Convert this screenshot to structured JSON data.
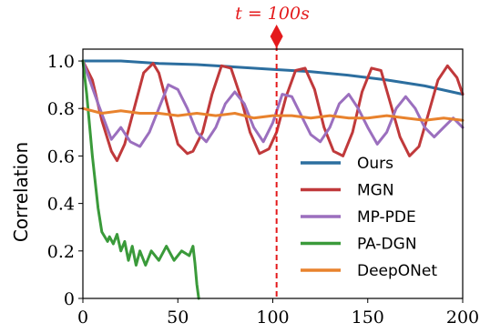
{
  "chart_data": {
    "type": "line",
    "title": "",
    "xlabel": "",
    "ylabel": "Correlation",
    "xlim": [
      0,
      200
    ],
    "ylim": [
      0,
      1.05
    ],
    "xticks": [
      0,
      50,
      100,
      150,
      200
    ],
    "xtick_labels": [
      "0",
      "50",
      "100",
      "150",
      "200"
    ],
    "yticks": [
      0,
      0.2,
      0.4,
      0.6,
      0.8,
      1.0
    ],
    "ytick_labels": [
      "0",
      "0.2",
      "0.4",
      "0.6",
      "0.8",
      "1.0"
    ],
    "grid": false,
    "legend_position": "lower-right",
    "annotation": {
      "label": "t = 100s",
      "x": 102,
      "style": "dashed vertical line with diamond marker"
    },
    "series": [
      {
        "name": "Ours",
        "color": "#2c6e9f",
        "x": [
          0,
          20,
          40,
          60,
          80,
          100,
          120,
          140,
          160,
          180,
          200
        ],
        "y": [
          1.0,
          1.0,
          0.99,
          0.985,
          0.975,
          0.965,
          0.955,
          0.94,
          0.92,
          0.895,
          0.86
        ]
      },
      {
        "name": "MGN",
        "color": "#c0393b",
        "x": [
          0,
          5,
          10,
          15,
          18,
          22,
          27,
          32,
          37,
          40,
          45,
          50,
          55,
          58,
          63,
          68,
          73,
          78,
          83,
          88,
          93,
          98,
          102,
          107,
          112,
          117,
          122,
          127,
          132,
          137,
          142,
          147,
          152,
          157,
          162,
          167,
          172,
          177,
          182,
          187,
          192,
          197,
          200
        ],
        "y": [
          1.0,
          0.92,
          0.75,
          0.62,
          0.58,
          0.65,
          0.8,
          0.95,
          0.99,
          0.95,
          0.8,
          0.65,
          0.61,
          0.62,
          0.7,
          0.86,
          0.98,
          0.97,
          0.85,
          0.7,
          0.61,
          0.63,
          0.7,
          0.85,
          0.96,
          0.97,
          0.88,
          0.72,
          0.62,
          0.6,
          0.7,
          0.87,
          0.97,
          0.96,
          0.82,
          0.68,
          0.6,
          0.64,
          0.78,
          0.92,
          0.98,
          0.93,
          0.86
        ]
      },
      {
        "name": "MP-PDE",
        "color": "#9b6fbe",
        "x": [
          0,
          8,
          15,
          20,
          25,
          30,
          35,
          40,
          45,
          50,
          55,
          60,
          65,
          70,
          75,
          80,
          85,
          90,
          95,
          100,
          105,
          110,
          115,
          120,
          125,
          130,
          135,
          140,
          145,
          150,
          155,
          160,
          165,
          170,
          175,
          180,
          185,
          190,
          195,
          200
        ],
        "y": [
          1.0,
          0.82,
          0.67,
          0.72,
          0.66,
          0.64,
          0.7,
          0.8,
          0.9,
          0.88,
          0.8,
          0.7,
          0.66,
          0.72,
          0.82,
          0.87,
          0.82,
          0.72,
          0.66,
          0.74,
          0.86,
          0.85,
          0.77,
          0.69,
          0.66,
          0.72,
          0.82,
          0.86,
          0.8,
          0.72,
          0.65,
          0.7,
          0.8,
          0.85,
          0.8,
          0.72,
          0.68,
          0.72,
          0.76,
          0.72
        ]
      },
      {
        "name": "PA-DGN",
        "color": "#3a9a3a",
        "x": [
          0,
          2,
          5,
          8,
          10,
          13,
          14,
          16,
          18,
          20,
          22,
          24,
          26,
          28,
          30,
          33,
          36,
          40,
          44,
          48,
          52,
          56,
          58,
          59,
          60,
          61
        ],
        "y": [
          1.0,
          0.86,
          0.6,
          0.38,
          0.28,
          0.24,
          0.26,
          0.23,
          0.27,
          0.2,
          0.24,
          0.16,
          0.22,
          0.14,
          0.2,
          0.14,
          0.2,
          0.16,
          0.22,
          0.16,
          0.2,
          0.18,
          0.22,
          0.15,
          0.06,
          0.0
        ]
      },
      {
        "name": "DeepONet",
        "color": "#e8822d",
        "x": [
          0,
          10,
          20,
          30,
          40,
          50,
          60,
          70,
          80,
          90,
          100,
          110,
          120,
          130,
          140,
          150,
          160,
          170,
          180,
          190,
          200
        ],
        "y": [
          0.8,
          0.78,
          0.79,
          0.78,
          0.78,
          0.77,
          0.78,
          0.77,
          0.78,
          0.76,
          0.77,
          0.77,
          0.76,
          0.77,
          0.76,
          0.76,
          0.77,
          0.76,
          0.75,
          0.76,
          0.75
        ]
      }
    ]
  }
}
